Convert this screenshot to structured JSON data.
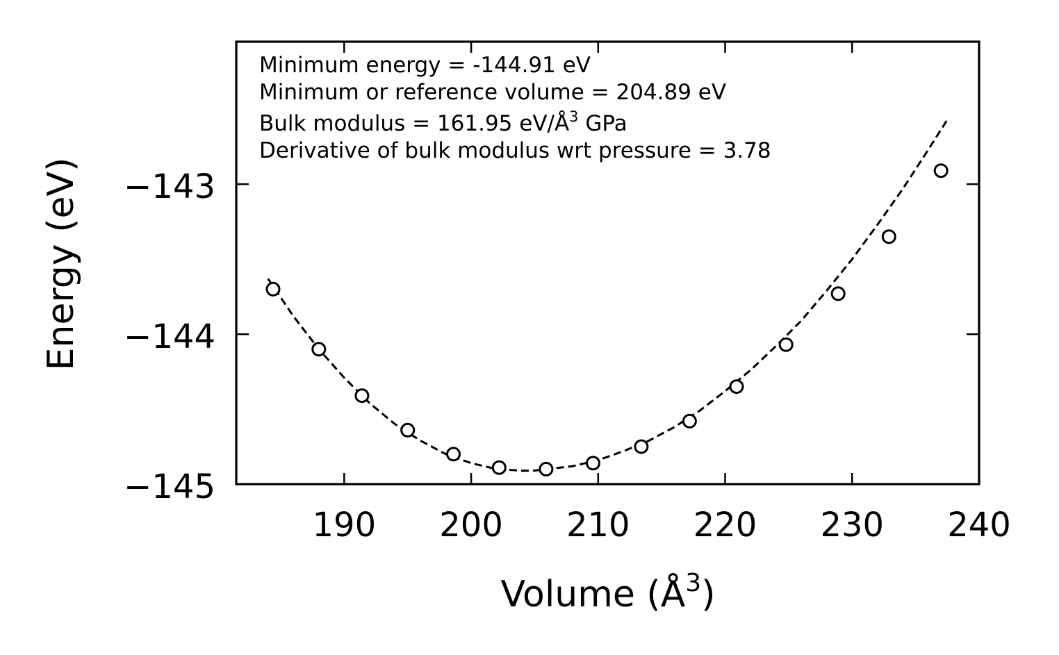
{
  "chart_data": {
    "type": "scatter",
    "xlabel": "Volume (Å",
    "xlabel_sup": "3",
    "xlabel_end": ")",
    "ylabel": "Energy (eV)",
    "xlim": [
      181.5,
      240
    ],
    "ylim": [
      -145,
      -142.05
    ],
    "x_ticks": [
      190,
      200,
      210,
      220,
      230,
      240
    ],
    "x_tick_labels": [
      "190",
      "200",
      "210",
      "220",
      "230",
      "240"
    ],
    "y_ticks": [
      -143,
      -144,
      -145
    ],
    "y_tick_labels": [
      "−143",
      "−144",
      "−145"
    ],
    "series": [
      {
        "name": "data",
        "style": "open-circles",
        "x": [
          184.4,
          188.0,
          191.4,
          195.0,
          198.6,
          202.2,
          205.9,
          209.6,
          213.4,
          217.2,
          220.9,
          224.8,
          228.9,
          232.9,
          237.0
        ],
        "y": [
          -143.7,
          -144.1,
          -144.41,
          -144.64,
          -144.8,
          -144.89,
          -144.9,
          -144.86,
          -144.75,
          -144.58,
          -144.35,
          -144.07,
          -143.73,
          -143.35,
          -142.91
        ]
      },
      {
        "name": "fit",
        "style": "dashed-line",
        "x": [
          184.0,
          186.0,
          188.0,
          190.0,
          192.0,
          194.0,
          196.0,
          198.0,
          200.0,
          202.0,
          204.0,
          204.89,
          206.0,
          208.0,
          210.0,
          212.0,
          214.0,
          216.0,
          218.0,
          220.0,
          222.0,
          224.0,
          226.0,
          228.0,
          230.0,
          232.0,
          234.0,
          236.0,
          237.5
        ],
        "y": [
          -143.63,
          -143.88,
          -144.1,
          -144.29,
          -144.46,
          -144.6,
          -144.71,
          -144.8,
          -144.86,
          -144.9,
          -144.91,
          -144.91,
          -144.9,
          -144.88,
          -144.84,
          -144.78,
          -144.71,
          -144.62,
          -144.51,
          -144.38,
          -144.24,
          -144.08,
          -143.91,
          -143.71,
          -143.5,
          -143.27,
          -143.03,
          -142.77,
          -142.57
        ]
      }
    ],
    "annotations": [
      "Minimum energy = -144.91 eV",
      "Minimum or reference volume = 204.89 eV",
      "Derivative of bulk modulus wrt pressure = 3.78"
    ],
    "bulk_annotation": {
      "prefix": "Bulk modulus = 161.95 eV/Å",
      "sup": "3",
      "suffix": " GPa"
    },
    "grid": false,
    "legend": "none"
  }
}
